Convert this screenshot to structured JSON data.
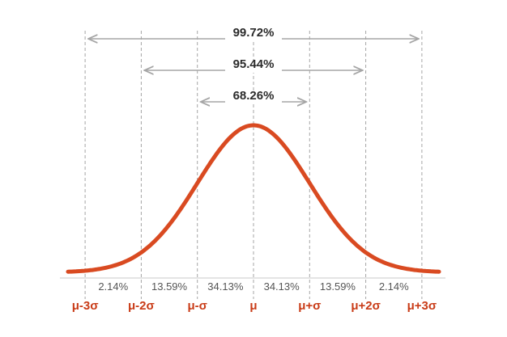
{
  "colors": {
    "curve": "#d94a21",
    "sigma_label": "#c93c18",
    "guide": "#a5a5a5",
    "arrow": "#a5a5a5",
    "text": "#2b2b2b",
    "segment_text": "#555555"
  },
  "ranges": [
    {
      "label": "99.72%",
      "from_sigma": -3,
      "to_sigma": 3
    },
    {
      "label": "95.44%",
      "from_sigma": -2,
      "to_sigma": 2
    },
    {
      "label": "68.26%",
      "from_sigma": -1,
      "to_sigma": 1
    }
  ],
  "segments": [
    "2.14%",
    "13.59%",
    "34.13%",
    "34.13%",
    "13.59%",
    "2.14%"
  ],
  "sigma_labels": [
    "μ-3σ",
    "μ-2σ",
    "μ-σ",
    "μ",
    "μ+σ",
    "μ+2σ",
    "μ+3σ"
  ]
}
